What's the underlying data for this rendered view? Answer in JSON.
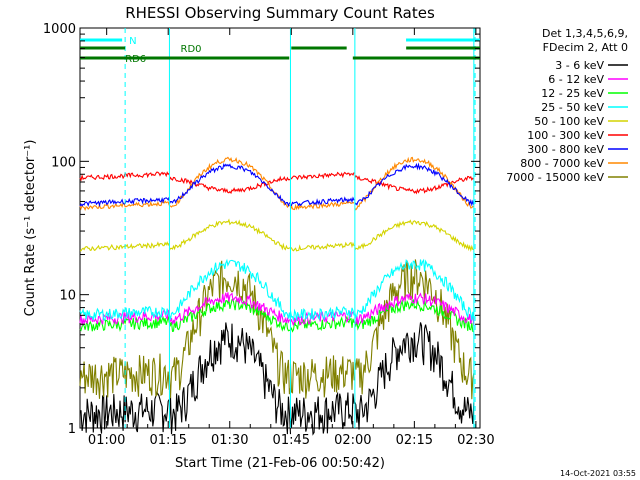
{
  "chart_data": {
    "type": "line",
    "title": "RHESSI Observing Summary Count Rates",
    "xlabel": "Start Time (21-Feb-06 00:50:42)",
    "ylabel": "Count Rate (s⁻¹ detector⁻¹)",
    "y_scale": "log",
    "ylim": [
      1,
      1000
    ],
    "xlim_minutes_of_day": [
      53.5,
      151.0
    ],
    "xticks": [
      {
        "label": "01:00",
        "minute": 60
      },
      {
        "label": "01:15",
        "minute": 75
      },
      {
        "label": "01:30",
        "minute": 90
      },
      {
        "label": "01:45",
        "minute": 105
      },
      {
        "label": "02:00",
        "minute": 120
      },
      {
        "label": "02:15",
        "minute": 135
      },
      {
        "label": "02:30",
        "minute": 150
      }
    ],
    "yticks": [
      {
        "label": "1",
        "value": 1
      },
      {
        "label": "10",
        "value": 10
      },
      {
        "label": "100",
        "value": 100
      },
      {
        "label": "1000",
        "value": 1000
      }
    ],
    "legend_header": [
      "Det 1,3,4,5,6,9,",
      "FDecim 2, Att 0"
    ],
    "legend_position": "right",
    "series": [
      {
        "name": "3 - 6 keV",
        "color": "#000000",
        "base": 1.3,
        "peak": 4.8,
        "night_peak": 1.0
      },
      {
        "name": "6 - 12 keV",
        "color": "#ff00ff",
        "base": 6.5,
        "peak": 9.5,
        "night_peak": 6.5
      },
      {
        "name": "12 - 25 keV",
        "color": "#00ff00",
        "base": 5.8,
        "peak": 8.5,
        "night_peak": 5.8
      },
      {
        "name": "25 - 50 keV",
        "color": "#00ffff",
        "base": 7.0,
        "peak": 17,
        "night_peak": 7.0
      },
      {
        "name": "50 - 100 keV",
        "color": "#d4d400",
        "base": 22,
        "peak": 35,
        "night_peak": 22
      },
      {
        "name": "100 - 300 keV",
        "color": "#ff0000",
        "base": 75,
        "peak": 60,
        "night_peak": 75
      },
      {
        "name": "300 - 800 keV",
        "color": "#0000ff",
        "base": 48,
        "peak": 92,
        "night_peak": 48
      },
      {
        "name": "800 - 7000 keV",
        "color": "#ff8800",
        "base": 45,
        "peak": 103,
        "night_peak": 45
      },
      {
        "name": "7000 - 15000 keV",
        "color": "#808000",
        "base": 2.5,
        "peak": 14,
        "night_peak": 2.5
      }
    ],
    "sun_intervals_minutes": [
      [
        75.3,
        104.8
      ],
      [
        120.5,
        149.5
      ]
    ],
    "saa_markers_minutes": [
      [
        53.5,
        64.5,
        "N"
      ],
      [
        133.0,
        149.8,
        ""
      ]
    ],
    "flag_bars": [
      {
        "label": "RD0",
        "color": "#007700",
        "row": "upper",
        "segments": [
          [
            53.5,
            64.5
          ],
          [
            105.0,
            118.5
          ],
          [
            133.0,
            151.0
          ]
        ]
      },
      {
        "label": "RD6",
        "color": "#007700",
        "row": "lower",
        "segments": [
          [
            53.5,
            104.5
          ],
          [
            120.0,
            151.0
          ]
        ]
      }
    ],
    "grid": false
  },
  "footer": {
    "timestamp": "14-Oct-2021 03:55"
  }
}
